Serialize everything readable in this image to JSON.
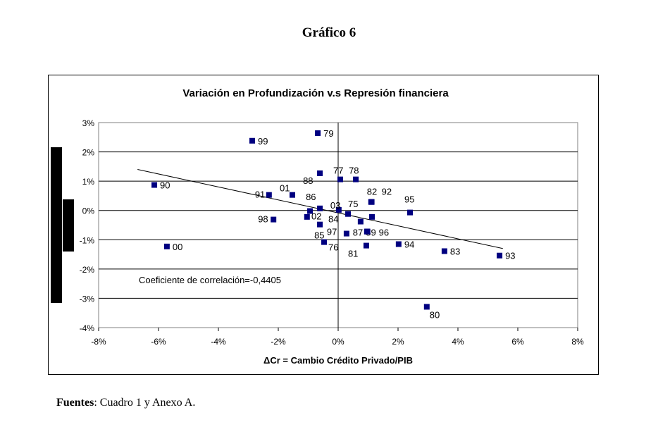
{
  "page_title": "Gráfico 6",
  "source": {
    "label": "Fuentes",
    "text": ": Cuadro 1 y Anexo A."
  },
  "chart_data": {
    "type": "scatter",
    "title": "Variación en Profundización v.s Represión financiera",
    "xlabel": "ΔCr = Cambio Crédito Privado/PIB",
    "ylabel": "",
    "xlim": [
      -8,
      8
    ],
    "ylim": [
      -4,
      3
    ],
    "xticks": [
      "-8%",
      "-6%",
      "-4%",
      "-2%",
      "0%",
      "2%",
      "4%",
      "6%",
      "8%"
    ],
    "yticks": [
      "3%",
      "2%",
      "1%",
      "0%",
      "-1%",
      "-2%",
      "-3%",
      "-4%"
    ],
    "grid": "horizontal",
    "annotation": "Coeficiente de correlación=-0,4405",
    "trendline": {
      "x": [
        -6.7,
        5.5
      ],
      "y": [
        1.4,
        -1.3
      ]
    },
    "marker_color": "#000080",
    "points": [
      {
        "label": "99",
        "x": -2.87,
        "y": 2.38
      },
      {
        "label": "79",
        "x": -0.68,
        "y": 2.64
      },
      {
        "label": "77",
        "x": 0.07,
        "y": 1.06
      },
      {
        "label": "78",
        "x": 0.59,
        "y": 1.06
      },
      {
        "label": "88",
        "x": -0.61,
        "y": 1.27
      },
      {
        "label": "90",
        "x": -6.14,
        "y": 0.87
      },
      {
        "label": "91",
        "x": -2.31,
        "y": 0.53
      },
      {
        "label": "01",
        "x": -1.53,
        "y": 0.53
      },
      {
        "label": "86",
        "x": -0.61,
        "y": 0.07
      },
      {
        "label": "03",
        "x": 0.02,
        "y": 0.02
      },
      {
        "label": "82",
        "x": 1.1,
        "y": 0.29
      },
      {
        "label": "92",
        "x": 1.12,
        "y": 0.29
      },
      {
        "label": "75",
        "x": 1.13,
        "y": -0.22
      },
      {
        "label": "95",
        "x": 2.4,
        "y": -0.07
      },
      {
        "label": "02",
        "x": -0.94,
        "y": -0.02
      },
      {
        "label": "",
        "x": -1.04,
        "y": -0.22
      },
      {
        "label": "98",
        "x": -2.16,
        "y": -0.31
      },
      {
        "label": "84",
        "x": 0.33,
        "y": -0.12
      },
      {
        "label": "",
        "x": 0.75,
        "y": -0.38
      },
      {
        "label": "85",
        "x": -0.61,
        "y": -0.48
      },
      {
        "label": "87",
        "x": 0.96,
        "y": -0.72
      },
      {
        "label": "89",
        "x": 0.97,
        "y": -0.72
      },
      {
        "label": "96",
        "x": 0.98,
        "y": -0.72
      },
      {
        "label": "97",
        "x": 0.28,
        "y": -0.79
      },
      {
        "label": "76",
        "x": -0.47,
        "y": -1.08
      },
      {
        "label": "81",
        "x": 0.94,
        "y": -1.2
      },
      {
        "label": "94",
        "x": 2.02,
        "y": -1.15
      },
      {
        "label": "83",
        "x": 3.55,
        "y": -1.39
      },
      {
        "label": "93",
        "x": 5.39,
        "y": -1.54
      },
      {
        "label": "00",
        "x": -5.72,
        "y": -1.23
      },
      {
        "label": "80",
        "x": 2.96,
        "y": -3.29
      }
    ]
  }
}
